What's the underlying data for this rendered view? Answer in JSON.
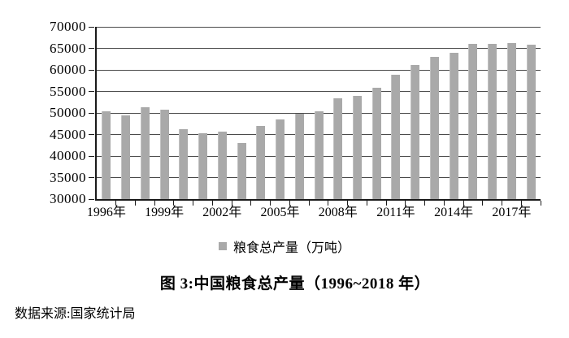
{
  "chart_data": {
    "type": "bar",
    "title": "图 3:中国粮食总产量（1996~2018 年）",
    "source": "数据来源:国家统计局",
    "legend": "粮食总产量（万吨）",
    "legend_position": "bottom",
    "categories": [
      "1996年",
      "1997年",
      "1998年",
      "1999年",
      "2000年",
      "2001年",
      "2002年",
      "2003年",
      "2004年",
      "2005年",
      "2006年",
      "2007年",
      "2008年",
      "2009年",
      "2010年",
      "2011年",
      "2012年",
      "2013年",
      "2014年",
      "2015年",
      "2016年",
      "2017年",
      "2018年"
    ],
    "values": [
      50454,
      49417,
      51230,
      50839,
      46218,
      45264,
      45706,
      43070,
      46947,
      48402,
      49804,
      50414,
      53434,
      53941,
      55911,
      58849,
      61223,
      63048,
      63965,
      66060,
      66044,
      66161,
      65789
    ],
    "x_tick_labels": [
      "1996年",
      "1999年",
      "2002年",
      "2005年",
      "2008年",
      "2011年",
      "2014年",
      "2017年"
    ],
    "x_tick_indices": [
      0,
      3,
      6,
      9,
      12,
      15,
      18,
      21
    ],
    "y_ticks": [
      30000,
      35000,
      40000,
      45000,
      50000,
      55000,
      60000,
      65000,
      70000
    ],
    "ylim": [
      30000,
      70000
    ],
    "grid": true,
    "bar_color": "#a9a9a9",
    "gridline_color": "#4a4a4a",
    "axis_color": "#1a1a1a"
  }
}
